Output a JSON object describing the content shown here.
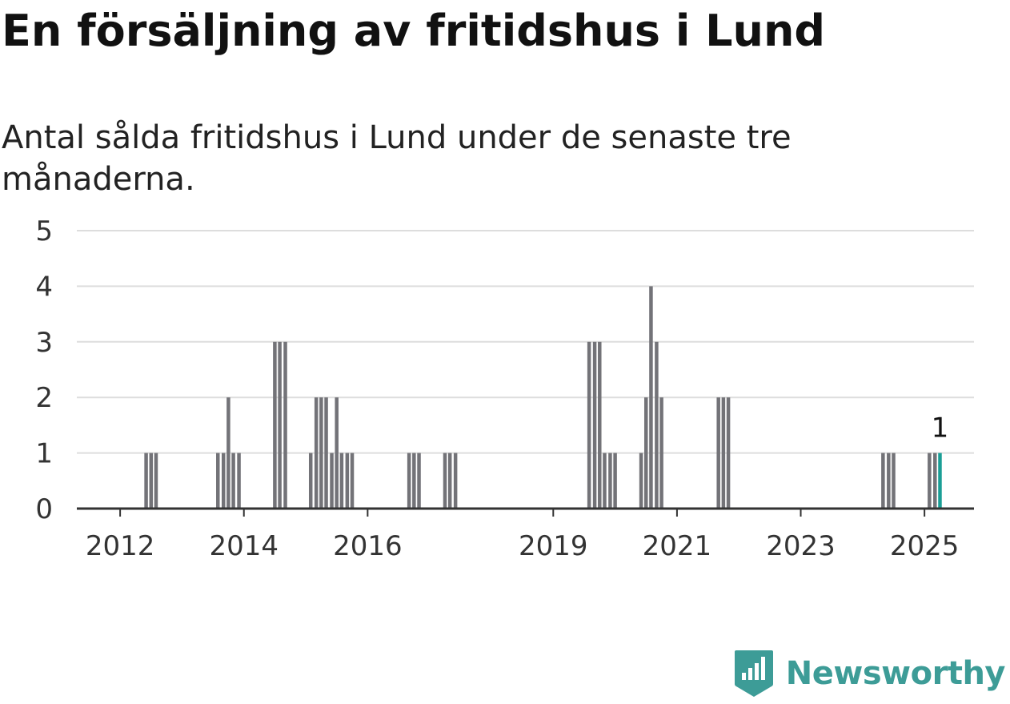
{
  "header": {
    "title": "En försäljning av fritidshus i Lund",
    "subtitle": "Antal sålda fritidshus i Lund under de senaste tre månaderna."
  },
  "brand": {
    "name": "Newsworthy",
    "icon": "bar-chart-badge-icon",
    "color": "#3d9c97"
  },
  "chart_data": {
    "type": "bar",
    "xlabel": "",
    "ylabel": "",
    "ylim": [
      0,
      5
    ],
    "yticks": [
      0,
      1,
      2,
      3,
      4,
      5
    ],
    "grid": true,
    "xlim": [
      2011.3,
      2025.8
    ],
    "xticks": [
      {
        "value": 2012,
        "label": "2012"
      },
      {
        "value": 2014,
        "label": "2014"
      },
      {
        "value": 2016,
        "label": "2016"
      },
      {
        "value": 2019,
        "label": "2019"
      },
      {
        "value": 2021,
        "label": "2021"
      },
      {
        "value": 2023,
        "label": "2023"
      },
      {
        "value": 2025,
        "label": "2025"
      }
    ],
    "colors": {
      "bar": "#737378",
      "highlight": "#1a9e96",
      "grid": "#dddddd",
      "axis": "#333333"
    },
    "highlight_label": "1",
    "series": [
      {
        "values": [
          {
            "x": 2012.42,
            "y": 1
          },
          {
            "x": 2012.5,
            "y": 1
          },
          {
            "x": 2012.58,
            "y": 1
          },
          {
            "x": 2013.58,
            "y": 1
          },
          {
            "x": 2013.67,
            "y": 1
          },
          {
            "x": 2013.75,
            "y": 2
          },
          {
            "x": 2013.83,
            "y": 1
          },
          {
            "x": 2013.92,
            "y": 1
          },
          {
            "x": 2014.5,
            "y": 3
          },
          {
            "x": 2014.58,
            "y": 3
          },
          {
            "x": 2014.67,
            "y": 3
          },
          {
            "x": 2015.08,
            "y": 1
          },
          {
            "x": 2015.17,
            "y": 2
          },
          {
            "x": 2015.25,
            "y": 2
          },
          {
            "x": 2015.33,
            "y": 2
          },
          {
            "x": 2015.42,
            "y": 1
          },
          {
            "x": 2015.5,
            "y": 2
          },
          {
            "x": 2015.58,
            "y": 1
          },
          {
            "x": 2015.67,
            "y": 1
          },
          {
            "x": 2015.75,
            "y": 1
          },
          {
            "x": 2016.67,
            "y": 1
          },
          {
            "x": 2016.75,
            "y": 1
          },
          {
            "x": 2016.83,
            "y": 1
          },
          {
            "x": 2017.25,
            "y": 1
          },
          {
            "x": 2017.33,
            "y": 1
          },
          {
            "x": 2017.42,
            "y": 1
          },
          {
            "x": 2019.58,
            "y": 3
          },
          {
            "x": 2019.67,
            "y": 3
          },
          {
            "x": 2019.75,
            "y": 3
          },
          {
            "x": 2019.83,
            "y": 1
          },
          {
            "x": 2019.92,
            "y": 1
          },
          {
            "x": 2020.0,
            "y": 1
          },
          {
            "x": 2020.42,
            "y": 1
          },
          {
            "x": 2020.5,
            "y": 2
          },
          {
            "x": 2020.58,
            "y": 4
          },
          {
            "x": 2020.67,
            "y": 3
          },
          {
            "x": 2020.75,
            "y": 2
          },
          {
            "x": 2021.67,
            "y": 2
          },
          {
            "x": 2021.75,
            "y": 2
          },
          {
            "x": 2021.83,
            "y": 2
          },
          {
            "x": 2024.33,
            "y": 1
          },
          {
            "x": 2024.42,
            "y": 1
          },
          {
            "x": 2024.5,
            "y": 1
          },
          {
            "x": 2025.08,
            "y": 1
          },
          {
            "x": 2025.17,
            "y": 1
          },
          {
            "x": 2025.25,
            "y": 1,
            "highlight": true
          }
        ]
      }
    ]
  }
}
